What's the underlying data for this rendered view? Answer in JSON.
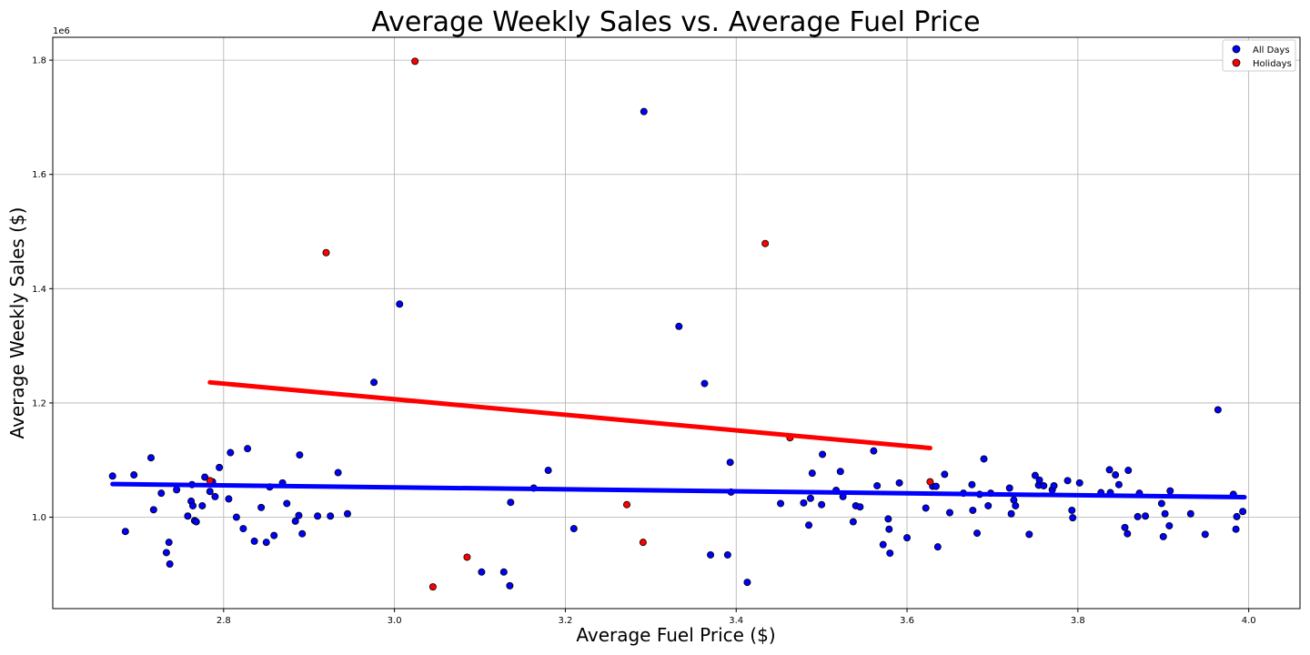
{
  "chart_data": {
    "type": "scatter",
    "title": "Average Weekly Sales vs. Average Fuel Price",
    "xlabel": "Average Fuel Price ($)",
    "ylabel": "Average Weekly Sales ($)",
    "y_offset_label": "1e6",
    "xlim": [
      2.6,
      4.06
    ],
    "ylim": [
      0.84,
      1.84
    ],
    "xticks": [
      2.8,
      3.0,
      3.2,
      3.4,
      3.6,
      3.8,
      4.0
    ],
    "xtick_labels": [
      "2.8",
      "3.0",
      "3.2",
      "3.4",
      "3.6",
      "3.8",
      "4.0"
    ],
    "yticks": [
      1.0,
      1.2,
      1.4,
      1.6,
      1.8
    ],
    "ytick_labels": [
      "1.0",
      "1.2",
      "1.4",
      "1.6",
      "1.8"
    ],
    "grid": true,
    "legend_position": "top-right",
    "series": [
      {
        "name": "All Days",
        "color": "#0000ff",
        "points": [
          [
            2.67,
            1.072
          ],
          [
            2.685,
            0.975
          ],
          [
            2.695,
            1.074
          ],
          [
            2.715,
            1.104
          ],
          [
            2.718,
            1.013
          ],
          [
            2.727,
            1.042
          ],
          [
            2.733,
            0.938
          ],
          [
            2.736,
            0.956
          ],
          [
            2.737,
            0.918
          ],
          [
            2.745,
            1.048
          ],
          [
            2.758,
            1.002
          ],
          [
            2.762,
            1.028
          ],
          [
            2.763,
            1.057
          ],
          [
            2.764,
            1.02
          ],
          [
            2.766,
            0.994
          ],
          [
            2.768,
            0.992
          ],
          [
            2.775,
            1.02
          ],
          [
            2.778,
            1.07
          ],
          [
            2.784,
            1.045
          ],
          [
            2.787,
            1.062
          ],
          [
            2.79,
            1.036
          ],
          [
            2.795,
            1.087
          ],
          [
            2.806,
            1.032
          ],
          [
            2.808,
            1.113
          ],
          [
            2.815,
            1.0
          ],
          [
            2.823,
            0.98
          ],
          [
            2.828,
            1.12
          ],
          [
            2.836,
            0.958
          ],
          [
            2.844,
            1.017
          ],
          [
            2.85,
            0.956
          ],
          [
            2.854,
            1.053
          ],
          [
            2.859,
            0.968
          ],
          [
            2.869,
            1.06
          ],
          [
            2.874,
            1.024
          ],
          [
            2.884,
            0.993
          ],
          [
            2.888,
            1.003
          ],
          [
            2.889,
            1.109
          ],
          [
            2.892,
            0.971
          ],
          [
            2.91,
            1.002
          ],
          [
            2.925,
            1.002
          ],
          [
            2.934,
            1.078
          ],
          [
            2.945,
            1.006
          ],
          [
            2.976,
            1.236
          ],
          [
            3.006,
            1.373
          ],
          [
            3.135,
            0.88
          ],
          [
            3.136,
            1.026
          ],
          [
            3.102,
            0.904
          ],
          [
            3.128,
            0.904
          ],
          [
            3.163,
            1.051
          ],
          [
            3.18,
            1.082
          ],
          [
            3.21,
            0.98
          ],
          [
            3.292,
            1.71
          ],
          [
            3.333,
            1.334
          ],
          [
            3.363,
            1.234
          ],
          [
            3.37,
            0.934
          ],
          [
            3.39,
            0.934
          ],
          [
            3.393,
            1.096
          ],
          [
            3.394,
            1.044
          ],
          [
            3.413,
            0.886
          ],
          [
            3.452,
            1.024
          ],
          [
            3.479,
            1.025
          ],
          [
            3.485,
            0.986
          ],
          [
            3.487,
            1.033
          ],
          [
            3.489,
            1.077
          ],
          [
            3.5,
            1.022
          ],
          [
            3.501,
            1.11
          ],
          [
            3.517,
            1.047
          ],
          [
            3.522,
            1.08
          ],
          [
            3.525,
            1.036
          ],
          [
            3.537,
            0.992
          ],
          [
            3.54,
            1.02
          ],
          [
            3.545,
            1.018
          ],
          [
            3.561,
            1.116
          ],
          [
            3.565,
            1.055
          ],
          [
            3.572,
            0.952
          ],
          [
            3.578,
            0.997
          ],
          [
            3.579,
            0.979
          ],
          [
            3.58,
            0.937
          ],
          [
            3.591,
            1.06
          ],
          [
            3.6,
            0.964
          ],
          [
            3.622,
            1.016
          ],
          [
            3.63,
            1.054
          ],
          [
            3.634,
            1.054
          ],
          [
            3.636,
            0.948
          ],
          [
            3.644,
            1.075
          ],
          [
            3.65,
            1.008
          ],
          [
            3.666,
            1.042
          ],
          [
            3.676,
            1.057
          ],
          [
            3.677,
            1.012
          ],
          [
            3.682,
            0.972
          ],
          [
            3.685,
            1.04
          ],
          [
            3.69,
            1.102
          ],
          [
            3.695,
            1.02
          ],
          [
            3.698,
            1.042
          ],
          [
            3.72,
            1.051
          ],
          [
            3.722,
            1.006
          ],
          [
            3.725,
            1.03
          ],
          [
            3.727,
            1.02
          ],
          [
            3.743,
            0.97
          ],
          [
            3.75,
            1.073
          ],
          [
            3.754,
            1.056
          ],
          [
            3.755,
            1.065
          ],
          [
            3.76,
            1.055
          ],
          [
            3.77,
            1.048
          ],
          [
            3.772,
            1.055
          ],
          [
            3.788,
            1.064
          ],
          [
            3.793,
            1.012
          ],
          [
            3.794,
            0.999
          ],
          [
            3.802,
            1.06
          ],
          [
            3.827,
            1.043
          ],
          [
            3.837,
            1.083
          ],
          [
            3.838,
            1.043
          ],
          [
            3.844,
            1.074
          ],
          [
            3.848,
            1.057
          ],
          [
            3.855,
            0.982
          ],
          [
            3.858,
            0.971
          ],
          [
            3.859,
            1.082
          ],
          [
            3.87,
            1.001
          ],
          [
            3.872,
            1.042
          ],
          [
            3.879,
            1.002
          ],
          [
            3.898,
            1.024
          ],
          [
            3.9,
            0.966
          ],
          [
            3.902,
            1.006
          ],
          [
            3.907,
            0.985
          ],
          [
            3.908,
            1.046
          ],
          [
            3.932,
            1.006
          ],
          [
            3.949,
            0.97
          ],
          [
            3.964,
            1.188
          ],
          [
            3.982,
            1.04
          ],
          [
            3.985,
            0.979
          ],
          [
            3.986,
            1.001
          ],
          [
            3.993,
            1.01
          ]
        ],
        "trend": [
          [
            2.67,
            1.058
          ],
          [
            3.995,
            1.035
          ]
        ]
      },
      {
        "name": "Holidays",
        "color": "#ff0000",
        "points": [
          [
            2.784,
            1.064
          ],
          [
            2.92,
            1.463
          ],
          [
            3.024,
            1.798
          ],
          [
            3.045,
            0.878
          ],
          [
            3.085,
            0.93
          ],
          [
            3.272,
            1.022
          ],
          [
            3.291,
            0.956
          ],
          [
            3.434,
            1.479
          ],
          [
            3.463,
            1.139
          ],
          [
            3.627,
            1.062
          ]
        ],
        "trend": [
          [
            2.784,
            1.236
          ],
          [
            3.627,
            1.121
          ]
        ]
      }
    ]
  }
}
